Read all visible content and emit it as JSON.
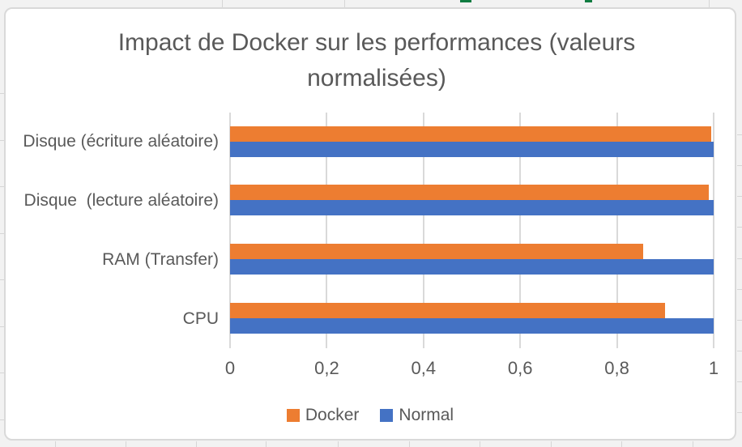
{
  "chart_data": {
    "type": "bar",
    "orientation": "horizontal",
    "title": "Impact de Docker sur les performances (valeurs normalisées)",
    "categories": [
      "Disque (écriture aléatoire)",
      "Disque  (lecture aléatoire)",
      "RAM (Transfer)",
      "CPU"
    ],
    "series": [
      {
        "name": "Docker",
        "color": "#ED7D31",
        "values": [
          0.995,
          0.99,
          0.855,
          0.9
        ]
      },
      {
        "name": "Normal",
        "color": "#4472C4",
        "values": [
          1,
          1,
          1,
          1
        ]
      }
    ],
    "x_ticks": [
      "0",
      "0,2",
      "0,4",
      "0,6",
      "0,8",
      "1"
    ],
    "xlim": [
      0,
      1
    ],
    "xlabel": "",
    "ylabel": "",
    "grid": true,
    "legend_position": "bottom"
  },
  "legend": {
    "items": [
      {
        "label": "Docker",
        "color": "#ED7D31"
      },
      {
        "label": "Normal",
        "color": "#4472C4"
      }
    ]
  },
  "colors": {
    "text": "#595959",
    "gridline": "#D9D9D9",
    "chart_border": "#D9D9D9",
    "background": "#FFFFFF",
    "sheet_background": "#F2F2F2",
    "accent_green": "#107C41"
  }
}
